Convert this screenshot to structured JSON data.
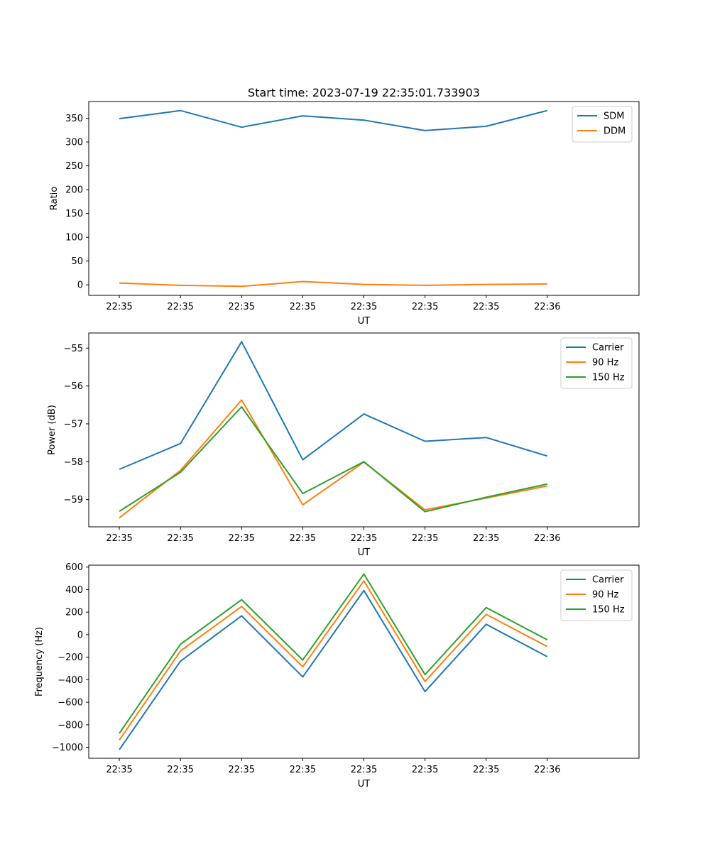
{
  "figure_title": "Start time: 2023-07-19 22:35:01.733903",
  "colors": {
    "blue": "#1f77b4",
    "orange": "#ff7f0e",
    "green": "#2ca02c"
  },
  "chart_data": [
    {
      "type": "line",
      "title": "Start time: 2023-07-19 22:35:01.733903",
      "xlabel": "UT",
      "ylabel": "Ratio",
      "x_tick_labels": [
        "22:35",
        "22:35",
        "22:35",
        "22:35",
        "22:35",
        "22:35",
        "22:35",
        "22:36"
      ],
      "y_ticks": [
        0,
        50,
        100,
        150,
        200,
        250,
        300,
        350
      ],
      "y_tick_labels": [
        "0",
        "50",
        "100",
        "150",
        "200",
        "250",
        "300",
        "350"
      ],
      "xlim": [
        -0.5,
        8.5
      ],
      "ylim": [
        -22,
        385
      ],
      "x": [
        0,
        1,
        2,
        3,
        4,
        5,
        6,
        7
      ],
      "legend_loc": "upper right",
      "series": [
        {
          "name": "SDM",
          "color": "#1f77b4",
          "values": [
            349,
            366,
            331,
            355,
            346,
            324,
            333,
            366
          ]
        },
        {
          "name": "DDM",
          "color": "#ff7f0e",
          "values": [
            4,
            -1,
            -3,
            7,
            1,
            -1,
            1,
            2
          ]
        }
      ]
    },
    {
      "type": "line",
      "title": "",
      "xlabel": "UT",
      "ylabel": "Power (dB)",
      "x_tick_labels": [
        "22:35",
        "22:35",
        "22:35",
        "22:35",
        "22:35",
        "22:35",
        "22:35",
        "22:36"
      ],
      "y_ticks": [
        -59,
        -58,
        -57,
        -56,
        -55
      ],
      "y_tick_labels": [
        "−59",
        "−58",
        "−57",
        "−56",
        "−55"
      ],
      "xlim": [
        -0.5,
        8.5
      ],
      "ylim": [
        -59.72,
        -54.6
      ],
      "x": [
        0,
        1,
        2,
        3,
        4,
        5,
        6,
        7
      ],
      "legend_loc": "upper right",
      "series": [
        {
          "name": "Carrier",
          "color": "#1f77b4",
          "values": [
            -58.2,
            -57.52,
            -54.83,
            -57.95,
            -56.74,
            -57.46,
            -57.36,
            -57.85
          ]
        },
        {
          "name": "90 Hz",
          "color": "#ff7f0e",
          "values": [
            -59.48,
            -58.23,
            -56.37,
            -59.14,
            -58.01,
            -59.27,
            -58.96,
            -58.64
          ]
        },
        {
          "name": "150 Hz",
          "color": "#2ca02c",
          "values": [
            -59.31,
            -58.28,
            -56.55,
            -58.84,
            -58.0,
            -59.32,
            -58.94,
            -58.59
          ]
        }
      ]
    },
    {
      "type": "line",
      "title": "",
      "xlabel": "UT",
      "ylabel": "Frequency (Hz)",
      "x_tick_labels": [
        "22:35",
        "22:35",
        "22:35",
        "22:35",
        "22:35",
        "22:35",
        "22:35",
        "22:36"
      ],
      "y_ticks": [
        -1000,
        -800,
        -600,
        -400,
        -200,
        0,
        200,
        400,
        600
      ],
      "y_tick_labels": [
        "−1000",
        "−800",
        "−600",
        "−400",
        "−200",
        "0",
        "200",
        "400",
        "600"
      ],
      "xlim": [
        -0.5,
        8.5
      ],
      "ylim": [
        -1097,
        617
      ],
      "x": [
        0,
        1,
        2,
        3,
        4,
        5,
        6,
        7
      ],
      "legend_loc": "upper right",
      "series": [
        {
          "name": "Carrier",
          "color": "#1f77b4",
          "values": [
            -1020,
            -235,
            167,
            -375,
            392,
            -505,
            92,
            -195
          ]
        },
        {
          "name": "90 Hz",
          "color": "#ff7f0e",
          "values": [
            -935,
            -145,
            250,
            -285,
            478,
            -415,
            180,
            -105
          ]
        },
        {
          "name": "150 Hz",
          "color": "#2ca02c",
          "values": [
            -875,
            -85,
            310,
            -225,
            538,
            -355,
            240,
            -45
          ]
        }
      ]
    }
  ]
}
